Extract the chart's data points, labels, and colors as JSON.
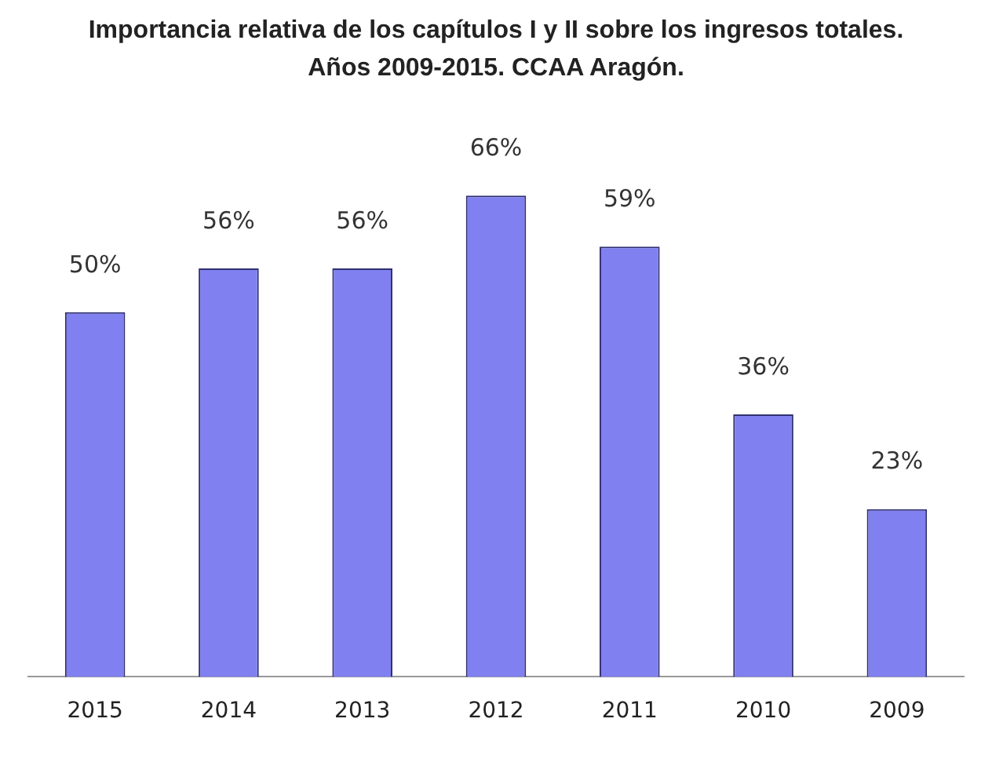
{
  "chart_data": {
    "type": "bar",
    "title": "Importancia relativa de los capítulos I y II sobre los ingresos totales.\nAños 2009-2015. CCAA Aragón.",
    "categories": [
      "2015",
      "2014",
      "2013",
      "2012",
      "2011",
      "2010",
      "2009"
    ],
    "values": [
      50,
      56,
      56,
      66,
      59,
      36,
      23
    ],
    "value_labels": [
      "50%",
      "56%",
      "56%",
      "66%",
      "59%",
      "36%",
      "23%"
    ],
    "color": "#8080f0",
    "grid": false,
    "legend": false
  }
}
